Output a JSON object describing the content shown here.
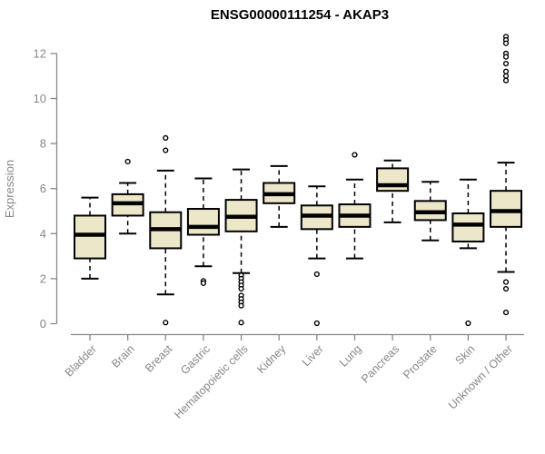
{
  "chart_data": {
    "type": "boxplot",
    "title": "ENSG00000111254 - AKAP3",
    "xlabel": "",
    "ylabel": "Expression",
    "ylim": [
      0,
      12
    ],
    "y_ticks": [
      0,
      2,
      4,
      6,
      8,
      10,
      12
    ],
    "grid": false,
    "legend": "none",
    "box_fill_color": "#EDE7CA",
    "box_stroke_color": "#000000",
    "axis_color": "#878787",
    "categories": [
      "Bladder",
      "Brain",
      "Breast",
      "Gastric",
      "Hematopoietic cells",
      "Kidney",
      "Liver",
      "Lung",
      "Pancreas",
      "Prostate",
      "Skin",
      "Unknown / Other"
    ],
    "series": [
      {
        "category": "Bladder",
        "whisker_low": 2.0,
        "q1": 2.9,
        "median": 3.95,
        "q3": 4.8,
        "whisker_high": 5.6,
        "outliers": []
      },
      {
        "category": "Brain",
        "whisker_low": 4.0,
        "q1": 4.8,
        "median": 5.35,
        "q3": 5.75,
        "whisker_high": 6.25,
        "outliers": [
          7.2
        ]
      },
      {
        "category": "Breast",
        "whisker_low": 1.3,
        "q1": 3.35,
        "median": 4.2,
        "q3": 4.95,
        "whisker_high": 6.8,
        "outliers": [
          8.25,
          7.7,
          0.05
        ]
      },
      {
        "category": "Gastric",
        "whisker_low": 2.55,
        "q1": 3.95,
        "median": 4.3,
        "q3": 5.1,
        "whisker_high": 6.45,
        "outliers": [
          1.9,
          1.8
        ]
      },
      {
        "category": "Hematopoietic cells",
        "whisker_low": 2.25,
        "q1": 4.1,
        "median": 4.75,
        "q3": 5.5,
        "whisker_high": 6.85,
        "outliers": [
          2.15,
          2.0,
          1.85,
          1.7,
          1.55,
          1.25,
          1.1,
          0.95,
          0.8,
          0.05
        ]
      },
      {
        "category": "Kidney",
        "whisker_low": 4.3,
        "q1": 5.35,
        "median": 5.75,
        "q3": 6.25,
        "whisker_high": 7.0,
        "outliers": []
      },
      {
        "category": "Liver",
        "whisker_low": 2.9,
        "q1": 4.2,
        "median": 4.8,
        "q3": 5.25,
        "whisker_high": 6.1,
        "outliers": [
          2.2,
          0.02
        ]
      },
      {
        "category": "Lung",
        "whisker_low": 2.9,
        "q1": 4.3,
        "median": 4.8,
        "q3": 5.3,
        "whisker_high": 6.4,
        "outliers": [
          7.5
        ]
      },
      {
        "category": "Pancreas",
        "whisker_low": 4.5,
        "q1": 5.9,
        "median": 6.15,
        "q3": 6.9,
        "whisker_high": 7.25,
        "outliers": []
      },
      {
        "category": "Prostate",
        "whisker_low": 3.7,
        "q1": 4.6,
        "median": 4.95,
        "q3": 5.45,
        "whisker_high": 6.3,
        "outliers": []
      },
      {
        "category": "Skin",
        "whisker_low": 3.35,
        "q1": 3.65,
        "median": 4.4,
        "q3": 4.9,
        "whisker_high": 6.4,
        "outliers": [
          0.02
        ]
      },
      {
        "category": "Unknown / Other",
        "whisker_low": 2.3,
        "q1": 4.3,
        "median": 5.0,
        "q3": 5.9,
        "whisker_high": 7.15,
        "outliers": [
          12.75,
          12.6,
          12.45,
          12.0,
          11.85,
          11.55,
          11.2,
          11.0,
          10.8,
          1.85,
          1.55,
          0.5
        ]
      }
    ]
  }
}
